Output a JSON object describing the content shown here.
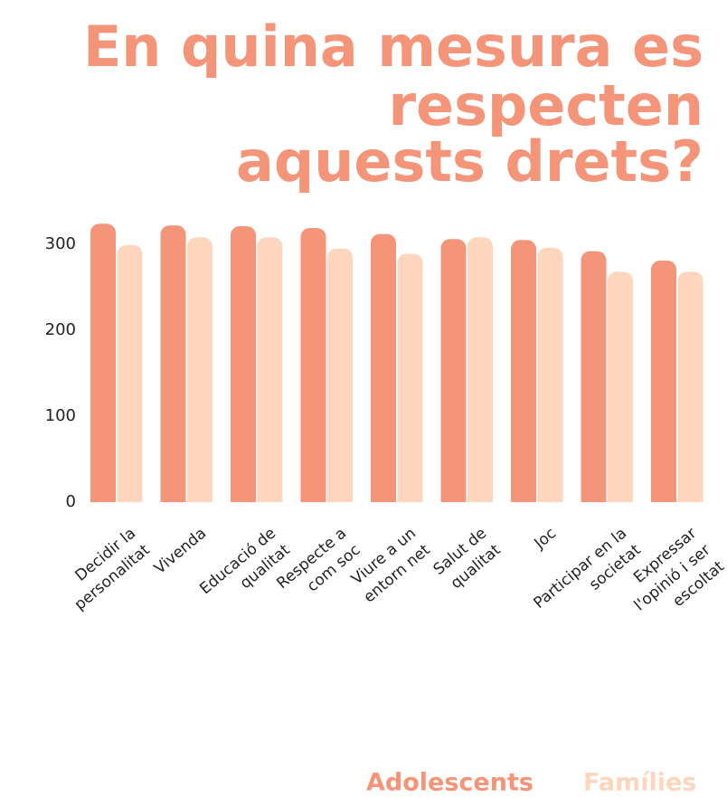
{
  "chart_data": {
    "type": "bar",
    "title_lines": [
      "En quina mesura es",
      "respecten",
      "aquests drets?"
    ],
    "categories": [
      "Decidir la personalitat",
      "Vivenda",
      "Educació de qualitat",
      "Respecte a com soc",
      "Viure a un entorn net",
      "Salut de qualitat",
      "Joc",
      "Participar en la societat",
      "Expressar l'opinió i ser escoltat"
    ],
    "series": [
      {
        "name": "Adolescents",
        "color": "#f4957a",
        "values": [
          324,
          322,
          321,
          319,
          312,
          306,
          305,
          292,
          281
        ]
      },
      {
        "name": "Famílies",
        "color": "#fdd6bd",
        "values": [
          299,
          308,
          308,
          295,
          289,
          308,
          296,
          268,
          268
        ]
      }
    ],
    "ylim": [
      0,
      300
    ],
    "yticks": [
      0,
      100,
      200,
      300
    ],
    "grid": false
  }
}
